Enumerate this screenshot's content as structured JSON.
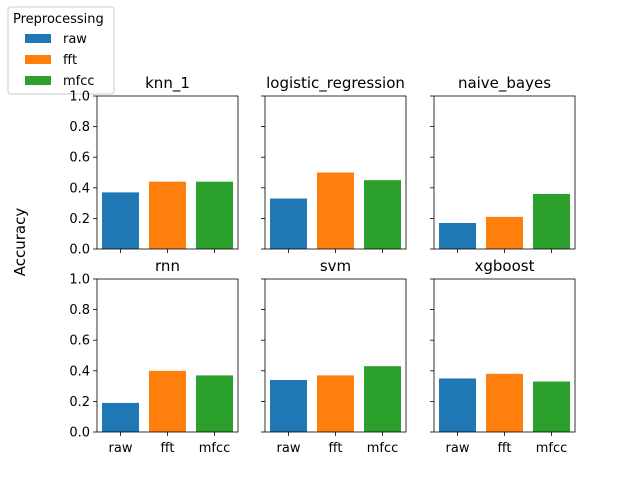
{
  "chart_data": {
    "type": "bar",
    "ylabel": "Accuracy",
    "ylim": [
      0,
      1
    ],
    "yticks": [
      "0.0",
      "0.2",
      "0.4",
      "0.6",
      "0.8",
      "1.0"
    ],
    "categories": [
      "raw",
      "fft",
      "mfcc"
    ],
    "colors": {
      "raw": "#1f77b4",
      "fft": "#ff7f0e",
      "mfcc": "#2ca02c"
    },
    "legend": {
      "title": "Preprocessing",
      "entries": [
        "raw",
        "fft",
        "mfcc"
      ],
      "placement": "top-left"
    },
    "grid": false,
    "panels": [
      {
        "title": "knn_1",
        "values": [
          0.37,
          0.44,
          0.44
        ]
      },
      {
        "title": "logistic_regression",
        "values": [
          0.33,
          0.5,
          0.45
        ]
      },
      {
        "title": "naive_bayes",
        "values": [
          0.17,
          0.21,
          0.36
        ]
      },
      {
        "title": "rnn",
        "values": [
          0.19,
          0.4,
          0.37
        ]
      },
      {
        "title": "svm",
        "values": [
          0.34,
          0.37,
          0.43
        ]
      },
      {
        "title": "xgboost",
        "values": [
          0.35,
          0.38,
          0.33
        ]
      }
    ]
  }
}
